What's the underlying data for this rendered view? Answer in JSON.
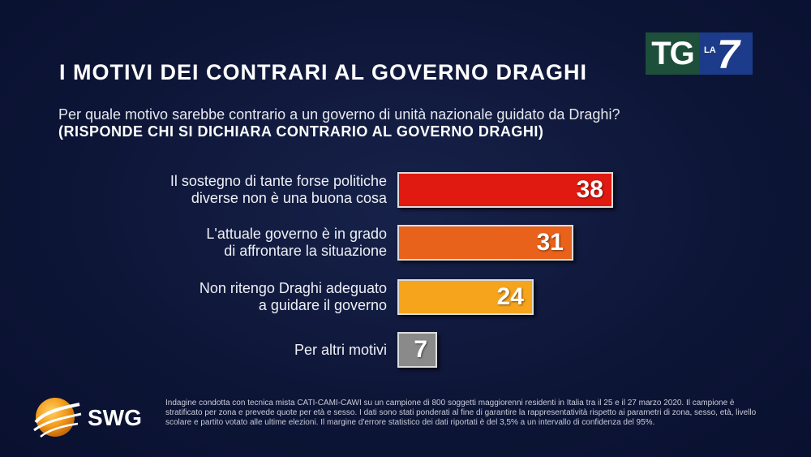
{
  "title": "I MOTIVI DEI CONTRARI AL GOVERNO DRAGHI",
  "question": "Per quale motivo sarebbe contrario a un governo di unità nazionale guidato da Draghi?",
  "subquestion": "(RISPONDE CHI SI DICHIARA CONTRARIO AL GOVERNO DRAGHI)",
  "brand": {
    "tg": "TG",
    "la": "LA",
    "seven": "7",
    "pollster": "SWG"
  },
  "footnote": "Indagine condotta con tecnica mista CATI-CAMI-CAWI su un campione di 800 soggetti maggiorenni residenti in Italia tra il 25 e il 27 marzo 2020. Il campione è stratificato per zona e prevede quote per età e sesso. I dati sono stati ponderati al fine di garantire la rappresentatività rispetto ai parametri di zona, sesso, età, livello scolare e partito votato alle ultime elezioni. Il margine d'errore statistico dei dati riportati è del 3,5% a un intervallo di confidenza del 95%.",
  "colors": {
    "bar1": "#e01a10",
    "bar2": "#e8621c",
    "bar3": "#f5a41c",
    "bar4": "#8a8a8a"
  },
  "chart_data": {
    "type": "bar",
    "orientation": "horizontal",
    "categories": [
      [
        "Il sostegno di tante forse politiche",
        "diverse non è una buona cosa"
      ],
      [
        "L'attuale governo è in grado",
        "di affrontare la situazione"
      ],
      [
        "Non ritengo Draghi adeguato",
        "a guidare il governo"
      ],
      [
        "Per altri motivi"
      ]
    ],
    "values": [
      38,
      31,
      24,
      7
    ],
    "title": "I MOTIVI DEI CONTRARI AL GOVERNO DRAGHI",
    "xlabel": "",
    "ylabel": "",
    "grid": false
  }
}
